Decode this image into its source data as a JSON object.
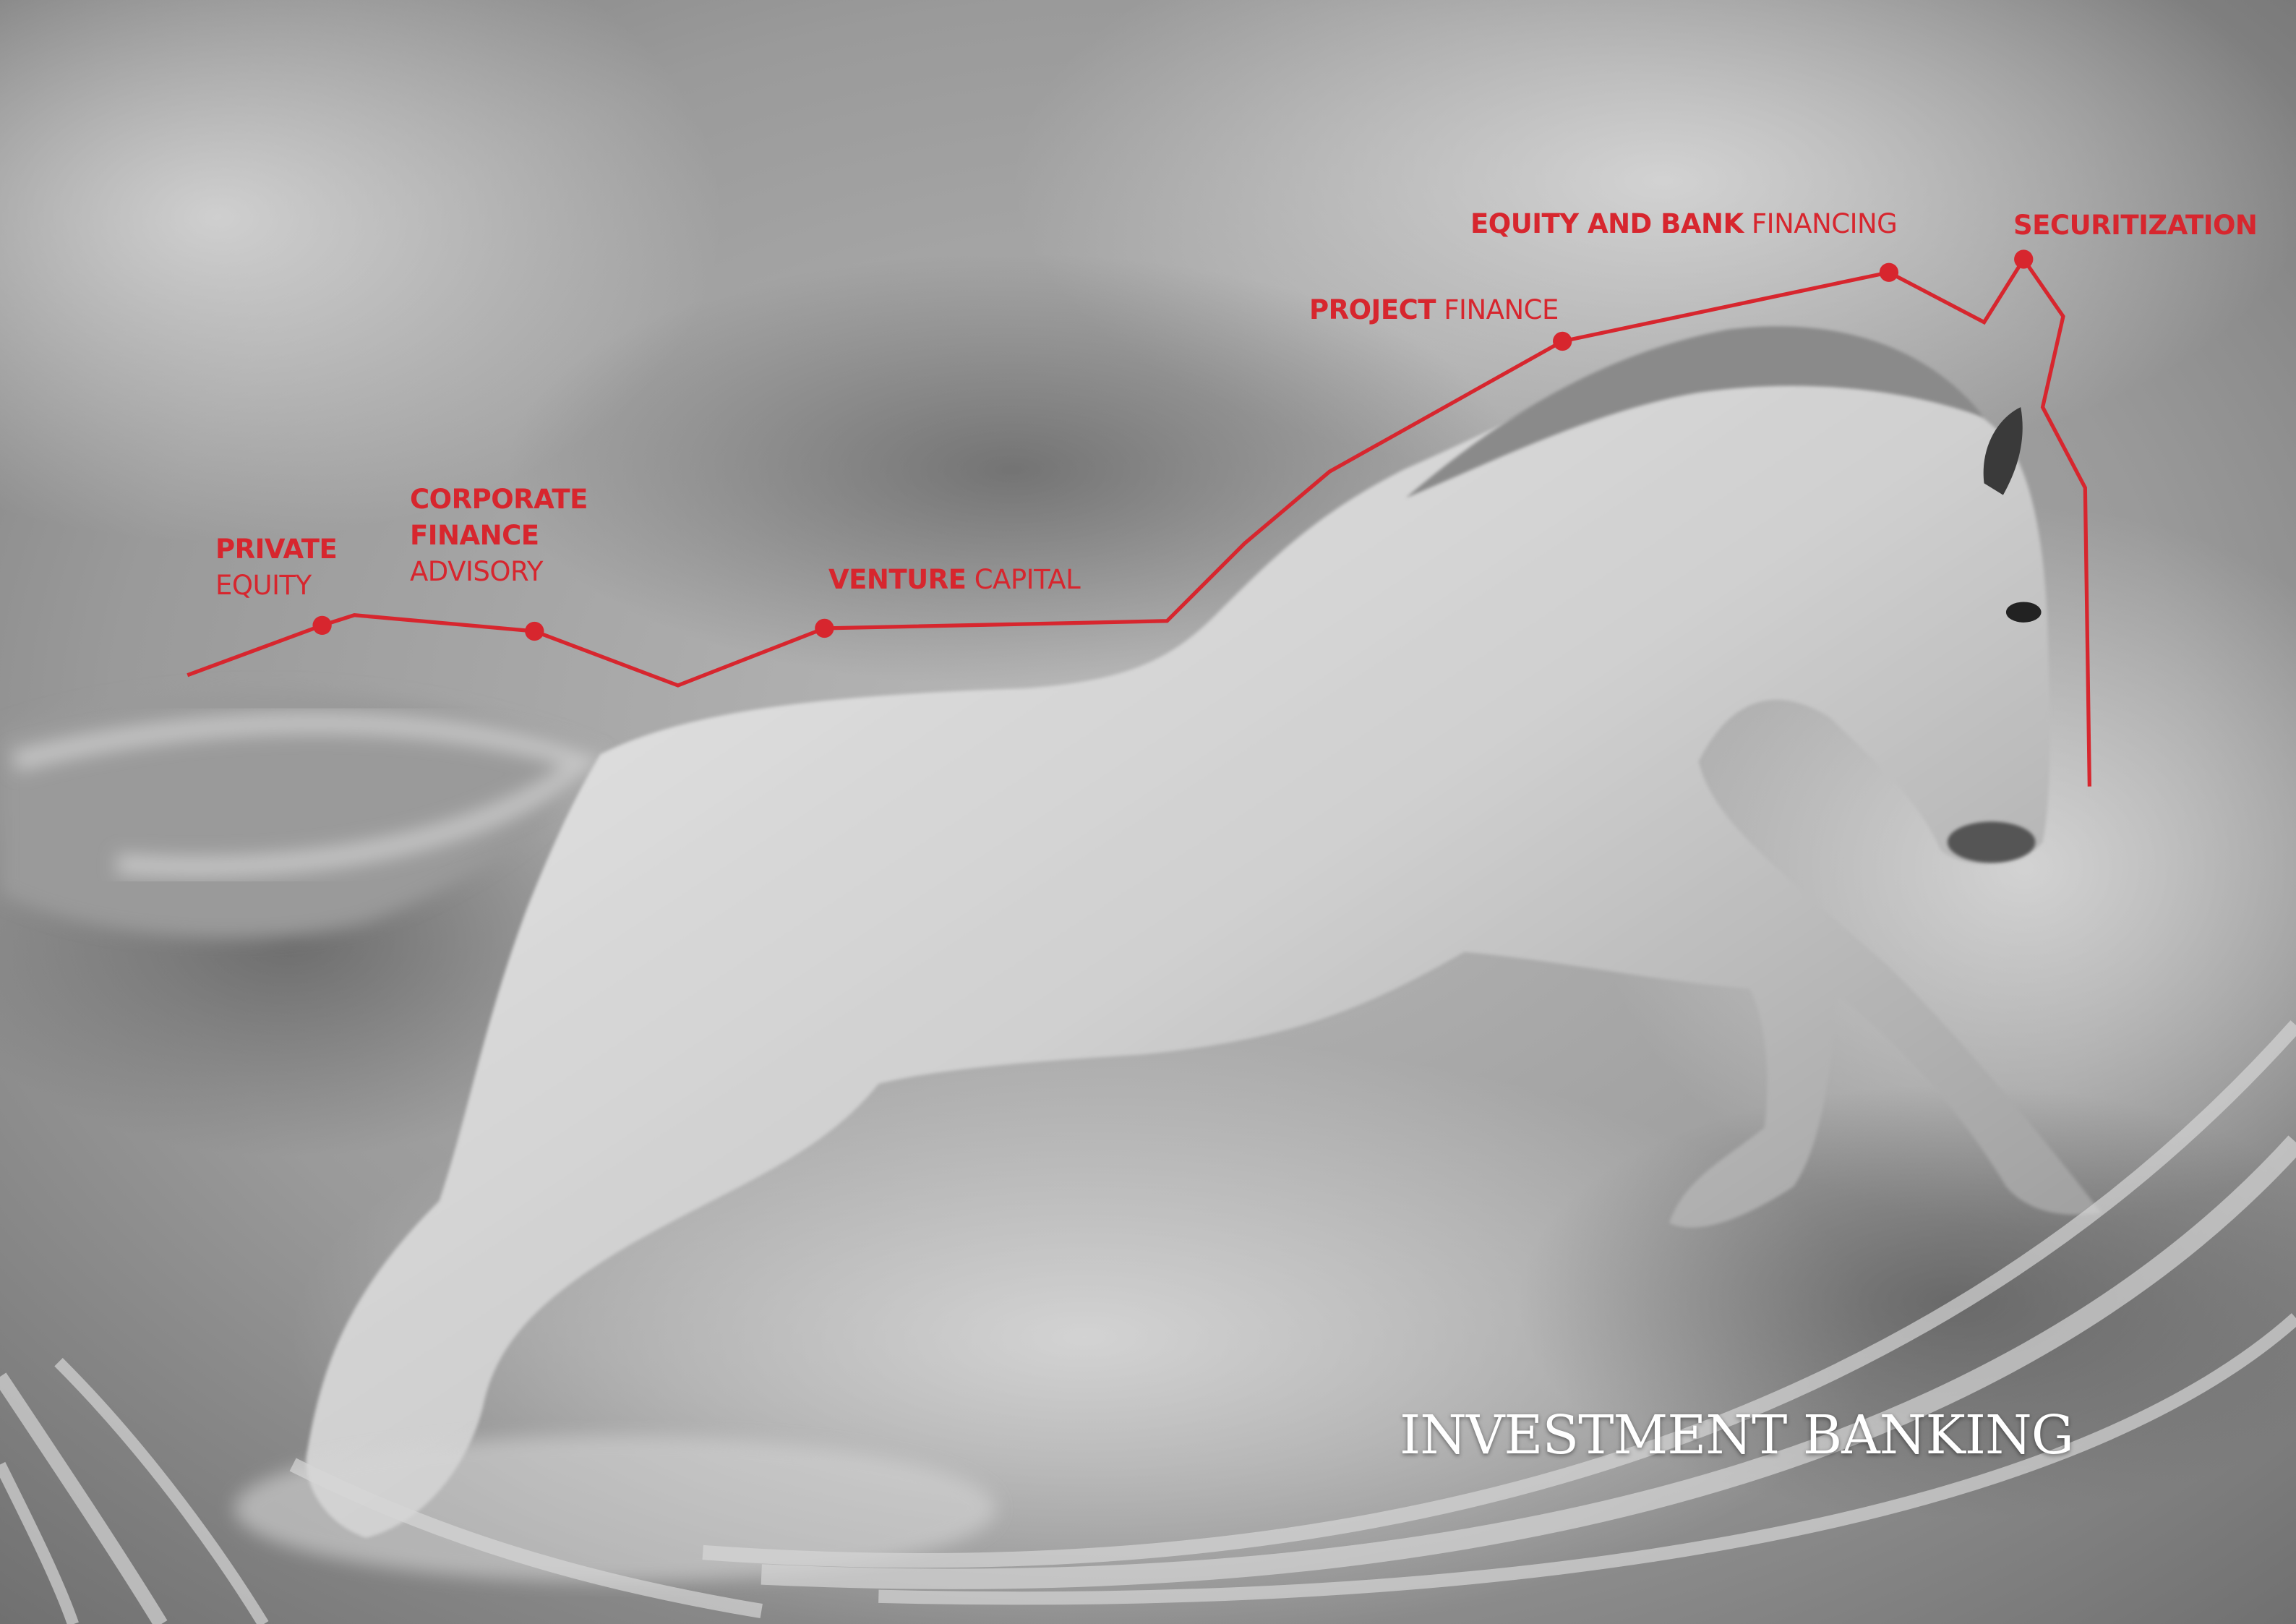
{
  "milestones": [
    {
      "bold": "PRIVATE",
      "regular": "EQUITY"
    },
    {
      "bold": "CORPORATE FINANCE",
      "regular": "ADVISORY"
    },
    {
      "bold": "VENTURE",
      "regular": "CAPITAL"
    },
    {
      "bold": "PROJECT",
      "regular": "FINANCE"
    },
    {
      "bold": "EQUITY AND BANK",
      "regular": "FINANCING"
    },
    {
      "bold": "SECURITIZATION"
    }
  ],
  "title": "INVESTMENT BANKING"
}
